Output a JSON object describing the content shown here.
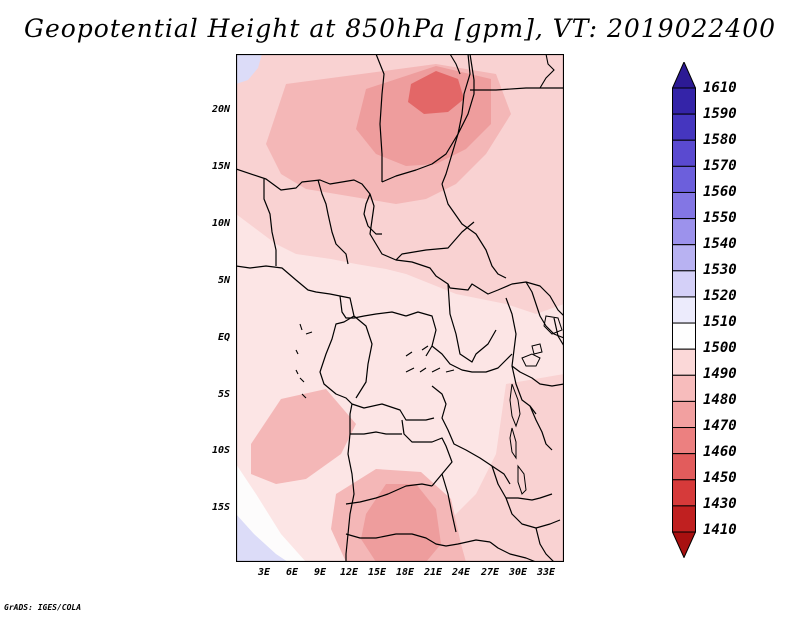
{
  "title": "Geopotential Height at 850hPa [gpm], VT: 2019022400",
  "footer": "GrADS: IGES/COLA",
  "map": {
    "lat_labels": [
      "20N",
      "15N",
      "10N",
      "5N",
      "EQ",
      "5S",
      "10S",
      "15S"
    ],
    "lon_labels": [
      "3E",
      "6E",
      "9E",
      "12E",
      "15E",
      "18E",
      "21E",
      "24E",
      "27E",
      "30E",
      "33E"
    ]
  },
  "colorbar": {
    "labels": [
      "1610",
      "1590",
      "1580",
      "1570",
      "1560",
      "1550",
      "1540",
      "1530",
      "1520",
      "1510",
      "1500",
      "1490",
      "1480",
      "1470",
      "1460",
      "1450",
      "1430",
      "1410"
    ],
    "colors": [
      "#2c1a94",
      "#3424a8",
      "#4536bf",
      "#5a4ad0",
      "#6c5fdc",
      "#8376e4",
      "#9c92ec",
      "#b8b2f2",
      "#d4d0f8",
      "#ecebfc",
      "#fefefe",
      "#fbd8d8",
      "#f7bcbc",
      "#f2a0a0",
      "#ec8080",
      "#e25c5c",
      "#d63a3a",
      "#c02020",
      "#a81010"
    ]
  },
  "field_colors": {
    "c1510": "#fce5e5",
    "c1500": "#f9d2d2",
    "c1490": "#f4b7b7",
    "c1480": "#ee9d9d",
    "c1470": "#e36767",
    "c1520": "#dcdcf8",
    "white": "#fdfcfc",
    "water": "#fdf2f2"
  }
}
